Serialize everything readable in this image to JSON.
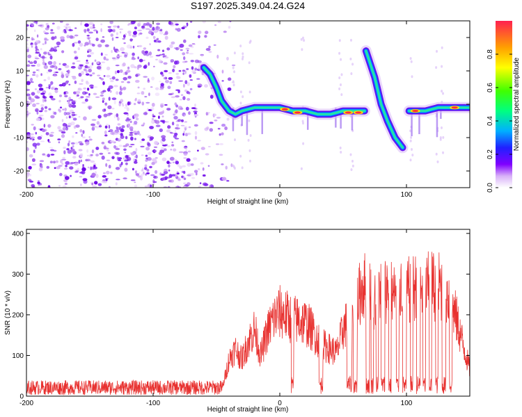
{
  "title": "S197.2025.349.04.24.G24",
  "chart_data": [
    {
      "type": "heatmap",
      "name": "spectrogram",
      "xlabel": "Height of straight line (km)",
      "ylabel": "Frequency (Hz)",
      "xlim": [
        -200,
        150
      ],
      "ylim": [
        -25,
        25
      ],
      "xticks": [
        -200,
        -100,
        0,
        100
      ],
      "xtick_labels": [
        "-200",
        "-100",
        "0",
        "100"
      ],
      "yticks": [
        -20,
        -10,
        0,
        10,
        20
      ],
      "ytick_labels": [
        "-20",
        "-10",
        "0",
        "10",
        "20"
      ],
      "colorbar": {
        "label": "Normalized spectral amplitude",
        "range": [
          0,
          1
        ],
        "ticks": [
          0.0,
          0.2,
          0.4,
          0.6,
          0.8
        ],
        "tick_labels": [
          "0.0",
          "0.2",
          "0.4",
          "0.6",
          "0.8"
        ],
        "colors": [
          "#ffffff",
          "#d8b0f8",
          "#8000ff",
          "#2020ff",
          "#00c0ff",
          "#00ff80",
          "#40ff00",
          "#ffff00",
          "#ffa000",
          "#ff2040"
        ]
      },
      "noise_region_x": [
        -200,
        -35
      ],
      "ridge": [
        {
          "x": -60,
          "f": 11
        },
        {
          "x": -55,
          "f": 9
        },
        {
          "x": -50,
          "f": 5
        },
        {
          "x": -46,
          "f": 1
        },
        {
          "x": -40,
          "f": -2
        },
        {
          "x": -35,
          "f": -3
        },
        {
          "x": -30,
          "f": -2
        },
        {
          "x": -20,
          "f": -1
        },
        {
          "x": -10,
          "f": -1
        },
        {
          "x": 0,
          "f": -1
        },
        {
          "x": 10,
          "f": -2
        },
        {
          "x": 20,
          "f": -2
        },
        {
          "x": 30,
          "f": -3
        },
        {
          "x": 40,
          "f": -3
        },
        {
          "x": 50,
          "f": -2
        },
        {
          "x": 60,
          "f": -2
        },
        {
          "x": 67,
          "f": -2
        }
      ],
      "steep_segment": [
        {
          "x": 68,
          "f": 16
        },
        {
          "x": 75,
          "f": 8
        },
        {
          "x": 80,
          "f": 0
        },
        {
          "x": 85,
          "f": -5
        },
        {
          "x": 91,
          "f": -10
        },
        {
          "x": 97,
          "f": -13
        }
      ],
      "right_segment": [
        {
          "x": 102,
          "f": -2
        },
        {
          "x": 115,
          "f": -2
        },
        {
          "x": 125,
          "f": -1
        },
        {
          "x": 135,
          "f": -1
        },
        {
          "x": 150,
          "f": -1
        }
      ],
      "hot_spots": [
        {
          "x": 14,
          "f": -2.5
        },
        {
          "x": 54,
          "f": -2.5
        },
        {
          "x": 62,
          "f": -2.5
        },
        {
          "x": 107,
          "f": -2
        },
        {
          "x": 138,
          "f": -1
        },
        {
          "x": 4,
          "f": -1.5
        }
      ]
    },
    {
      "type": "line",
      "name": "snr",
      "xlabel": "Height of straight line (km)",
      "ylabel": "SNR (10 * v/v)",
      "xlim": [
        -200,
        150
      ],
      "ylim": [
        0,
        410
      ],
      "xticks": [
        -200,
        -100,
        0,
        100
      ],
      "xtick_labels": [
        "-200",
        "-100",
        "0",
        "100"
      ],
      "yticks": [
        0,
        100,
        200,
        300,
        400
      ],
      "ytick_labels": [
        "0",
        "100",
        "200",
        "300",
        "400"
      ],
      "color": "#e8312f",
      "series": [
        {
          "name": "SNR",
          "x": [
            -200,
            -150,
            -100,
            -60,
            -45,
            -40,
            -35,
            -30,
            -25,
            -20,
            -15,
            -10,
            -5,
            0,
            5,
            10,
            15,
            20,
            25,
            30,
            35,
            40,
            45,
            50,
            55,
            60,
            65,
            70,
            75,
            80,
            85,
            90,
            95,
            100,
            105,
            110,
            115,
            120,
            125,
            130,
            135,
            140,
            145,
            150
          ],
          "y": [
            25,
            25,
            25,
            25,
            30,
            110,
            140,
            110,
            160,
            200,
            120,
            190,
            230,
            250,
            240,
            230,
            225,
            220,
            200,
            170,
            150,
            140,
            130,
            200,
            230,
            260,
            330,
            320,
            290,
            330,
            320,
            300,
            330,
            310,
            320,
            330,
            320,
            330,
            330,
            320,
            290,
            220,
            150,
            80
          ]
        }
      ],
      "dropouts": [
        {
          "x": 9,
          "w": 2
        },
        {
          "x": 31,
          "w": 3
        },
        {
          "x": 53,
          "w": 4
        },
        {
          "x": 58,
          "w": 3
        },
        {
          "x": 68,
          "w": 3
        },
        {
          "x": 72,
          "w": 2
        },
        {
          "x": 76,
          "w": 2
        },
        {
          "x": 80,
          "w": 3
        },
        {
          "x": 86,
          "w": 2
        },
        {
          "x": 92,
          "w": 2
        },
        {
          "x": 97,
          "w": 3
        },
        {
          "x": 103,
          "w": 2
        },
        {
          "x": 108,
          "w": 3
        },
        {
          "x": 113,
          "w": 2
        },
        {
          "x": 118,
          "w": 2
        },
        {
          "x": 123,
          "w": 2
        },
        {
          "x": 128,
          "w": 3
        },
        {
          "x": 134,
          "w": 2
        }
      ]
    }
  ]
}
